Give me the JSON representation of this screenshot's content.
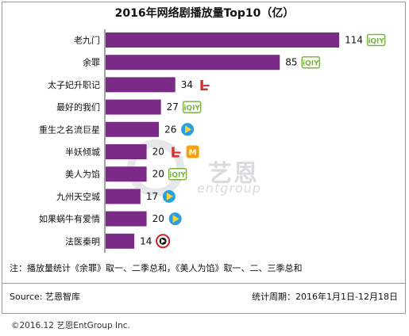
{
  "chart_data": {
    "type": "bar",
    "orientation": "horizontal",
    "title": "2016年网络剧播放量Top10（亿）",
    "categories": [
      "老九门",
      "余罪",
      "太子妃升职记",
      "最好的我们",
      "重生之名流巨星",
      "半妖倾城",
      "美人为馅",
      "九州天空城",
      "如果蜗牛有爱情",
      "法医秦明"
    ],
    "values": [
      114,
      85,
      34,
      27,
      26,
      20,
      20,
      17,
      20,
      14
    ],
    "platforms": [
      [
        "iqiyi"
      ],
      [
        "iqiyi"
      ],
      [
        "letv"
      ],
      [
        "iqiyi"
      ],
      [
        "tencent"
      ],
      [
        "letv",
        "mango"
      ],
      [
        "iqiyi"
      ],
      [
        "tencent"
      ],
      [
        "tencent"
      ],
      [
        "sohu"
      ]
    ],
    "bar_color": "#7b2b87",
    "grid": false,
    "legend": "none"
  },
  "platform_labels": {
    "iqiyi": "iQIY",
    "letv": "L",
    "mango": "M",
    "tencent": "",
    "sohu": ""
  },
  "colors": {
    "iqiyi": "#7cb342",
    "letv": "#d32f2f",
    "mango": "#f2a20c",
    "tencent": "#2aa0e0",
    "sohu": "#cc2222"
  },
  "watermark": {
    "text": "艺恩",
    "sub": "entgroup"
  },
  "note": "注：播放量统计《余罪》取一、二季总和，《美人为馅》取一、二、三季总和",
  "source": "Source: 艺恩智库",
  "period": "统计周期：2016年1月1日-12月18日",
  "copyright": "©2016.12  艺恩EntGroup Inc."
}
